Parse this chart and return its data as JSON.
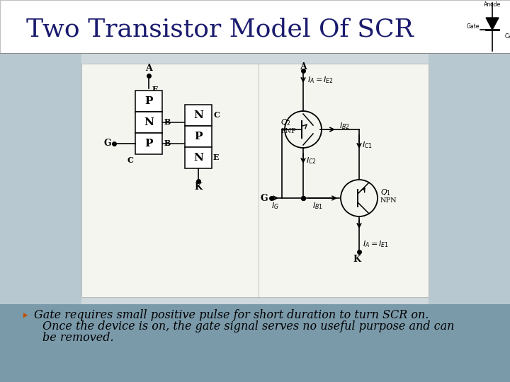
{
  "title": "Two Transistor Model Of SCR",
  "title_fontsize": 26,
  "title_color": "#1a1a6e",
  "slide_bg": "#dce3e8",
  "content_bg": "#cfd8dc",
  "side_panel_color": "#b8c8d0",
  "bottom_bar_color": "#7a9aaa",
  "white_panel_bg": "#f5f5f0",
  "bullet_text_line1": "Gate requires small positive pulse for short duration to turn SCR on.",
  "bullet_text_line2": "Once the device is on, the gate signal serves no useful purpose and can",
  "bullet_text_line3": "be removed.",
  "bullet_color": "#c05000",
  "text_color": "#000000",
  "text_fontsize": 11.5,
  "font_family": "DejaVu Serif"
}
